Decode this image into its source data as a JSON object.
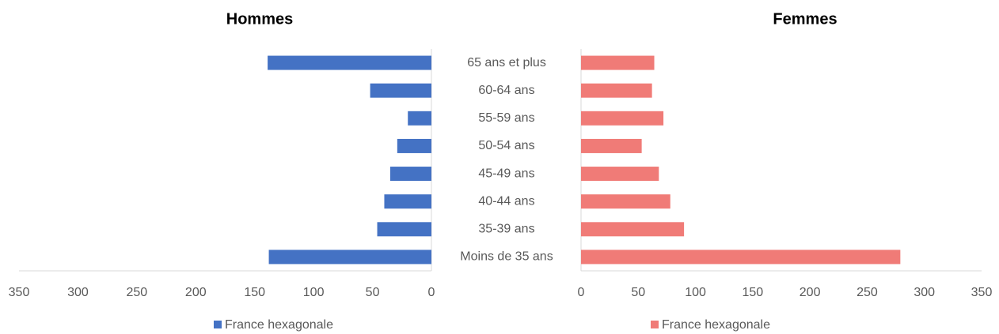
{
  "chart_data": [
    {
      "type": "bar",
      "orientation": "horizontal",
      "title": "Hommes",
      "categories": [
        "65 ans et plus",
        "60-64 ans",
        "55-59 ans",
        "50-54 ans",
        "45-49 ans",
        "40-44 ans",
        "35-39 ans",
        "Moins de 35 ans"
      ],
      "series": [
        {
          "name": "France hexagonale",
          "color": "#4472c4",
          "values": [
            139,
            52,
            20,
            29,
            35,
            40,
            46,
            138
          ]
        }
      ],
      "xlim": [
        0,
        350
      ],
      "xticks": [
        0,
        50,
        100,
        150,
        200,
        250,
        300,
        350
      ],
      "x_reversed": true
    },
    {
      "type": "bar",
      "orientation": "horizontal",
      "title": "Femmes",
      "series": [
        {
          "name": "France hexagonale",
          "color": "#f07b77",
          "values": [
            64,
            62,
            72,
            53,
            68,
            78,
            90,
            279
          ]
        }
      ],
      "xlim": [
        0,
        350
      ],
      "xticks": [
        0,
        50,
        100,
        150,
        200,
        250,
        300,
        350
      ],
      "x_reversed": false
    }
  ]
}
